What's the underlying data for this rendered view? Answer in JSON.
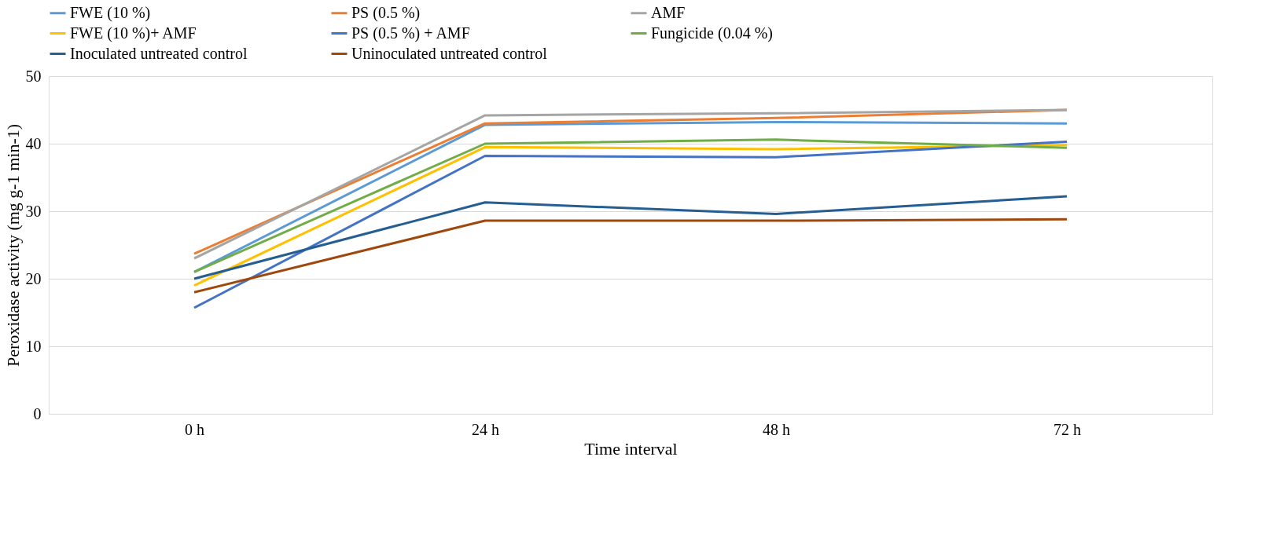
{
  "chart_data": {
    "type": "line",
    "xlabel": "Time interval",
    "ylabel": "Peroxidase activity (mg g-1 min-1)",
    "categories": [
      "0 h",
      "24 h",
      "48 h",
      "72 h"
    ],
    "ylim": [
      0,
      50
    ],
    "yticks": [
      0,
      10,
      20,
      30,
      40,
      50
    ],
    "grid": "y",
    "legend": "top",
    "marker": "none",
    "line_style": "solid",
    "series": [
      {
        "name": "FWE (10 %)",
        "color": "#5b9bd5",
        "values": [
          21,
          42.8,
          43.2,
          43
        ]
      },
      {
        "name": "PS (0.5 %)",
        "color": "#ed7d31",
        "values": [
          23.7,
          43,
          43.8,
          45
        ]
      },
      {
        "name": "AMF",
        "color": "#a5a5a5",
        "values": [
          23,
          44.2,
          44.5,
          45
        ]
      },
      {
        "name": "FWE (10 %)+ AMF",
        "color": "#ffc000",
        "values": [
          19,
          39.5,
          39.2,
          39.8
        ]
      },
      {
        "name": "PS (0.5 %) + AMF",
        "color": "#4472c4",
        "values": [
          15.7,
          38.2,
          38,
          40.3
        ]
      },
      {
        "name": "Fungicide (0.04 %)",
        "color": "#70ad47",
        "values": [
          21,
          40,
          40.6,
          39.4
        ]
      },
      {
        "name": "Inoculated untreated control",
        "color": "#255e91",
        "values": [
          20,
          31.3,
          29.6,
          32.2
        ]
      },
      {
        "name": "Uninoculated untreated control",
        "color": "#9e480e",
        "values": [
          18,
          28.6,
          28.6,
          28.8
        ]
      }
    ]
  }
}
